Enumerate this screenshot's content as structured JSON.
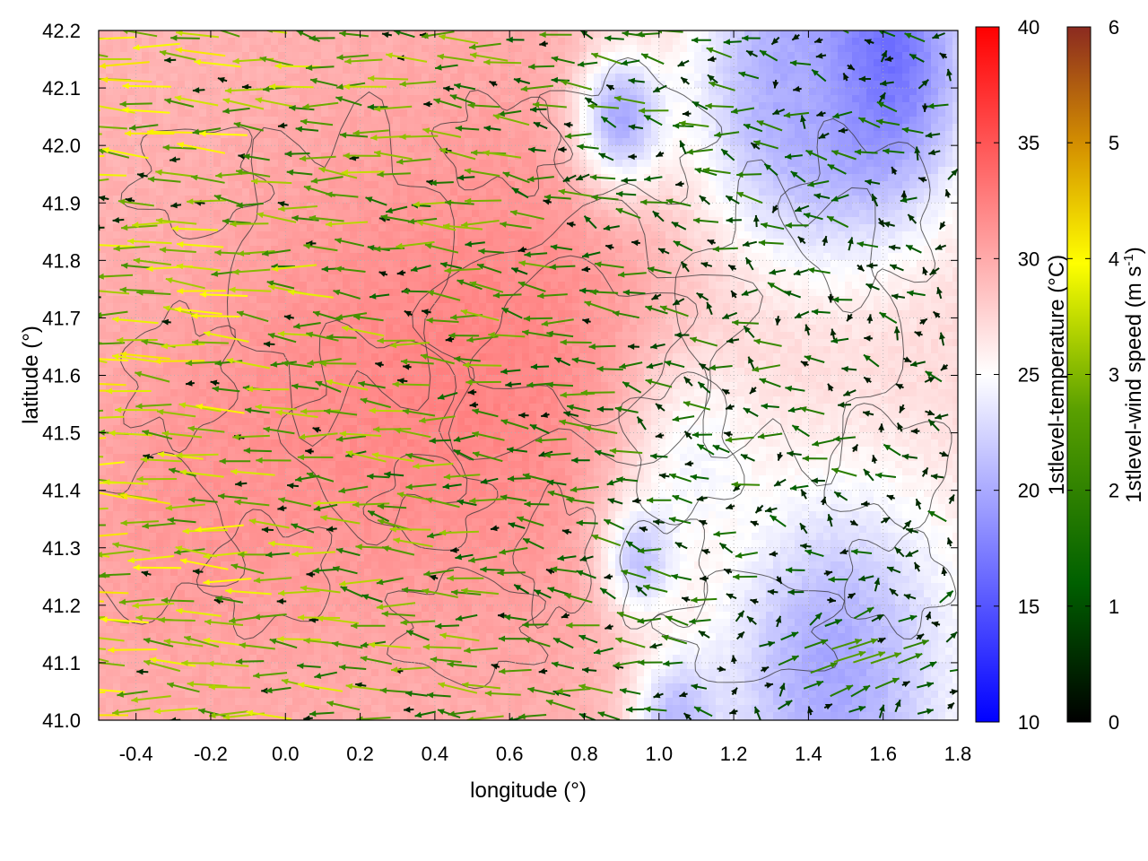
{
  "chart_data": {
    "type": "heatmap",
    "title": "",
    "xlabel": "longitude (°)",
    "ylabel": "latitude (°)",
    "xlim": [
      -0.5,
      1.8
    ],
    "ylim": [
      41.0,
      42.2
    ],
    "x_ticks": [
      "-0.4",
      "-0.2",
      "0.0",
      "0.2",
      "0.4",
      "0.6",
      "0.8",
      "1.0",
      "1.2",
      "1.4",
      "1.6",
      "1.8"
    ],
    "y_ticks": [
      "41.0",
      "41.1",
      "41.2",
      "41.3",
      "41.4",
      "41.5",
      "41.6",
      "41.7",
      "41.8",
      "41.9",
      "42.0",
      "42.1",
      "42.2"
    ],
    "grid": true,
    "temperature_colorbar": {
      "label_prefix": "1stlevel-temperature (°C)",
      "range": [
        10,
        40
      ],
      "ticks": [
        "10",
        "15",
        "20",
        "25",
        "30",
        "35",
        "40"
      ],
      "colors": [
        "#0000ff",
        "#ffffff",
        "#ff0000"
      ]
    },
    "wind_colorbar": {
      "label_main": "1stlevel-wind speed (m s",
      "label_sup": "-1",
      "label_end": ")",
      "range": [
        0,
        6
      ],
      "ticks": [
        "0",
        "1",
        "2",
        "3",
        "4",
        "5",
        "6"
      ],
      "colors": [
        "#000000",
        "#006000",
        "#5aa000",
        "#ffff00",
        "#d49000",
        "#8b2a20"
      ]
    },
    "temperature_field": {
      "background": 29.5,
      "hot_spots": [
        {
          "lon": 0.62,
          "lat": 41.62,
          "temp": 33.5,
          "spread": 0.45
        },
        {
          "lon": 0.1,
          "lat": 41.55,
          "temp": 32.0,
          "spread": 0.4
        },
        {
          "lon": -0.3,
          "lat": 41.35,
          "temp": 31.5,
          "spread": 0.3
        }
      ],
      "cool_spots": [
        {
          "lon": 1.55,
          "lat": 42.15,
          "temp": 15.0,
          "spread": 0.25
        },
        {
          "lon": 1.35,
          "lat": 42.1,
          "temp": 21.0,
          "spread": 0.3
        },
        {
          "lon": 0.9,
          "lat": 42.05,
          "temp": 20.0,
          "spread": 0.12
        },
        {
          "lon": 1.45,
          "lat": 41.08,
          "temp": 21.0,
          "spread": 0.35
        },
        {
          "lon": 1.1,
          "lat": 41.45,
          "temp": 25.0,
          "spread": 0.2
        },
        {
          "lon": 0.95,
          "lat": 41.28,
          "temp": 21.5,
          "spread": 0.1
        },
        {
          "lon": 1.05,
          "lat": 41.0,
          "temp": 21.0,
          "spread": 0.12
        }
      ]
    },
    "wind_field": {
      "west_lon": -0.5,
      "west_u": -3.5,
      "east_lon": 1.8,
      "east_u": -0.4,
      "typical_speed": [
        0.3,
        4.2
      ],
      "southeast_flow": {
        "lon": 1.5,
        "lat": 41.1,
        "u": 2.5,
        "v": 0.8
      }
    }
  }
}
